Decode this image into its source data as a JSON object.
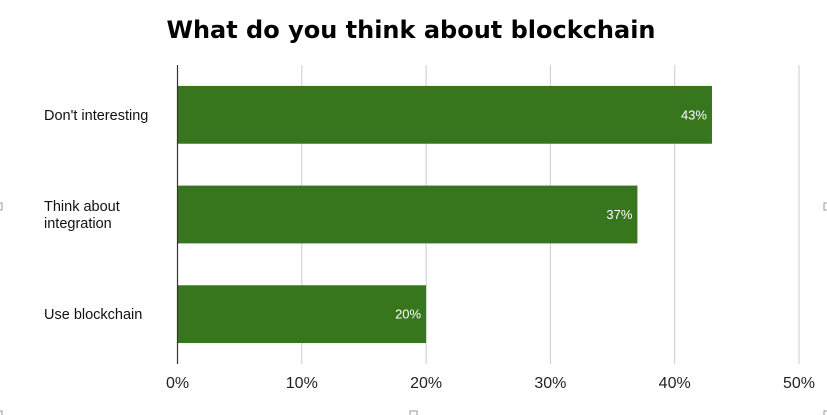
{
  "chart_data": {
    "type": "bar",
    "orientation": "horizontal",
    "title": "What do you think about blockchain",
    "categories": [
      [
        "Don't interesting"
      ],
      [
        "Think about",
        "integration"
      ],
      [
        "Use blockchain"
      ]
    ],
    "series": [
      {
        "values": [
          43,
          37,
          20
        ],
        "color": "#38761d"
      }
    ],
    "data_labels": [
      "43%",
      "37%",
      "20%"
    ],
    "xlim": [
      0,
      50
    ],
    "x_ticks": [
      0,
      10,
      20,
      30,
      40,
      50
    ],
    "x_tick_labels": [
      "0%",
      "10%",
      "20%",
      "30%",
      "40%",
      "50%"
    ],
    "xlabel": "",
    "ylabel": "",
    "grid": true,
    "legend": "none"
  }
}
